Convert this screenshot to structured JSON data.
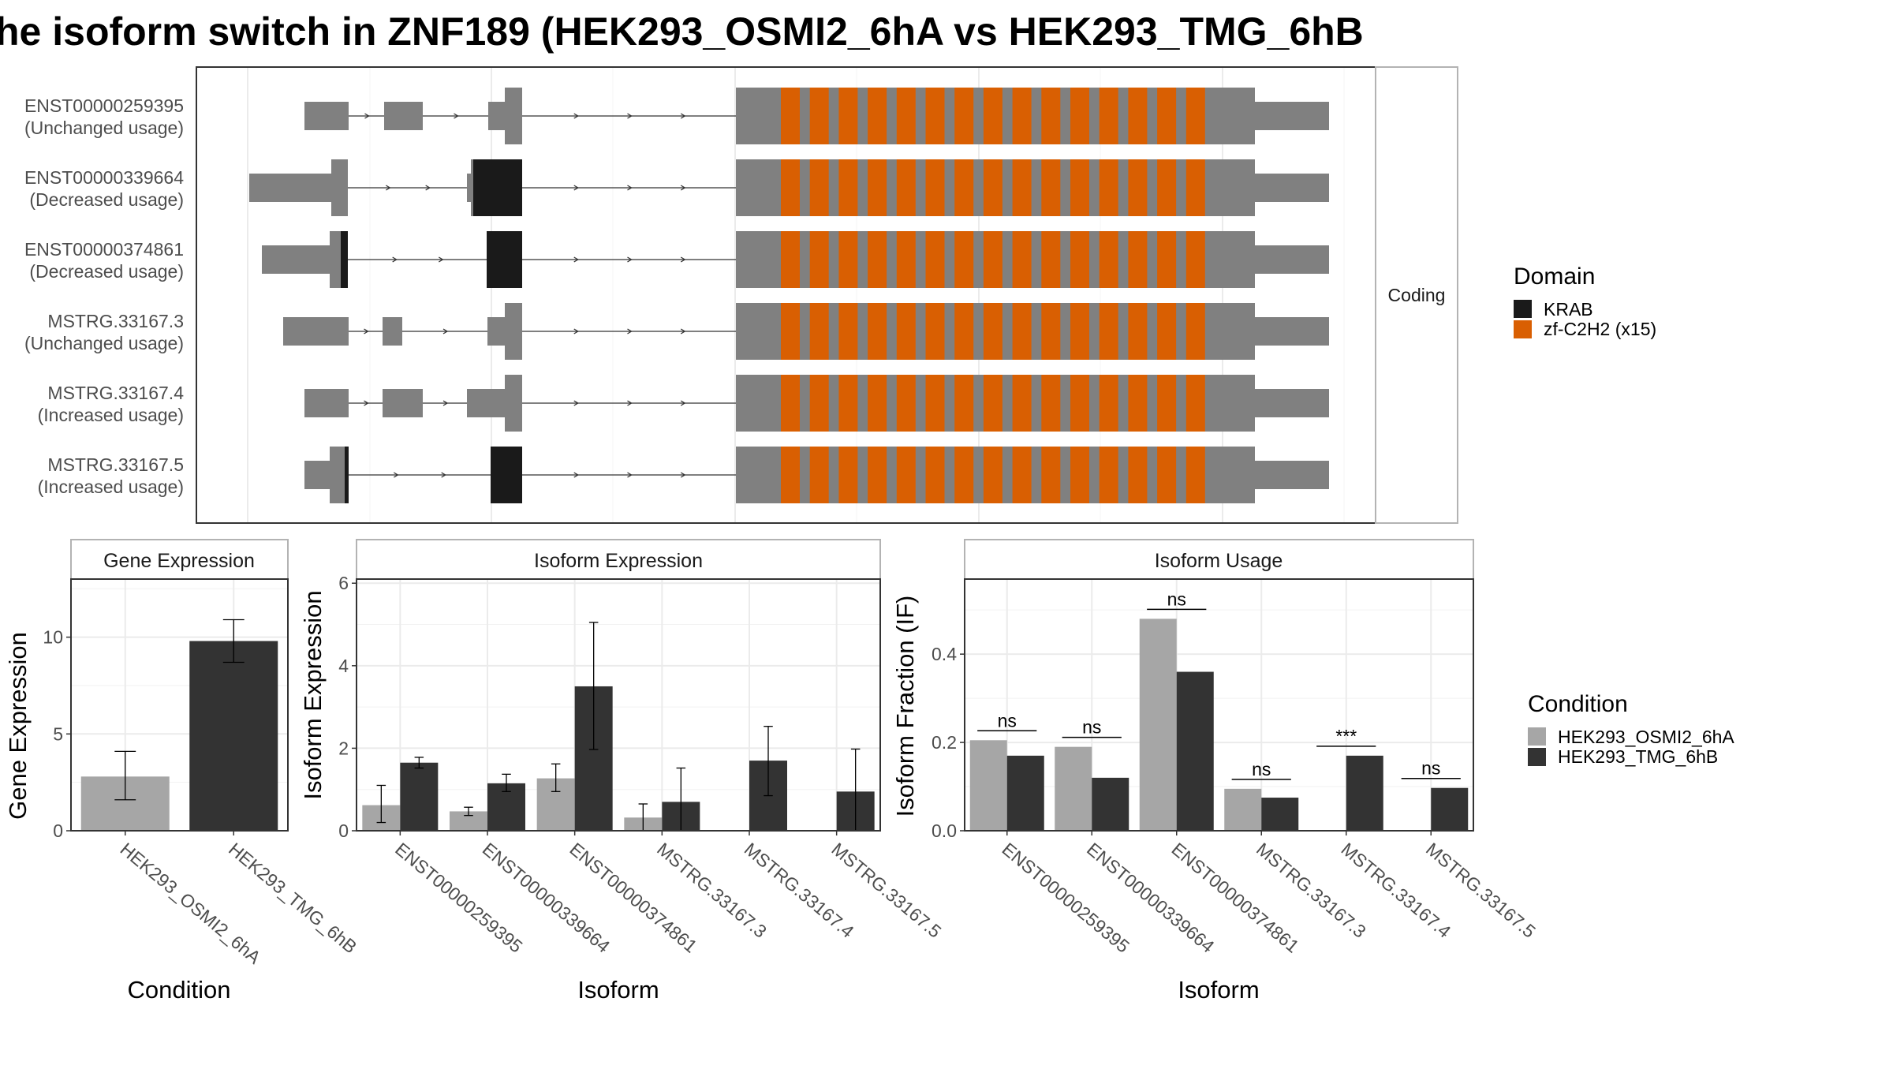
{
  "title": "he isoform switch in ZNF189 (HEK293_OSMI2_6hA vs HEK293_TMG_6hB",
  "colors": {
    "exon": "#808080",
    "krab": "#1a1a1a",
    "zf": "#d95f02",
    "cond1": "#a6a6a6",
    "cond2": "#333333",
    "grid": "#ebebeb",
    "panelBorder": "#333333",
    "stripBorder": "#b3b3b3"
  },
  "structure": {
    "facet_label": "Coding",
    "transcripts": [
      {
        "id": "ENST00000259395",
        "usage": "(Unchanged usage)"
      },
      {
        "id": "ENST00000339664",
        "usage": "(Decreased usage)"
      },
      {
        "id": "ENST00000374861",
        "usage": "(Decreased usage)"
      },
      {
        "id": "MSTRG.33167.3",
        "usage": "(Unchanged usage)"
      },
      {
        "id": "MSTRG.33167.4",
        "usage": "(Increased usage)"
      },
      {
        "id": "MSTRG.33167.5",
        "usage": "(Increased usage)"
      }
    ],
    "legend": {
      "title": "Domain",
      "items": [
        {
          "label": "KRAB",
          "color": "#1a1a1a"
        },
        {
          "label": "zf-C2H2 (x15)",
          "color": "#d95f02"
        }
      ]
    }
  },
  "chart_data": [
    {
      "type": "bar",
      "title": "Gene Expression",
      "xlabel": "Condition",
      "ylabel": "Gene Expression",
      "ylim": [
        0,
        13
      ],
      "yticks": [
        0,
        5,
        10
      ],
      "categories": [
        "HEK293_OSMI2_6hA",
        "HEK293_TMG_6hB"
      ],
      "values": [
        2.8,
        9.8
      ],
      "errors": [
        [
          1.6,
          4.1
        ],
        [
          8.7,
          10.9
        ]
      ]
    },
    {
      "type": "bar",
      "title": "Isoform Expression",
      "xlabel": "Isoform",
      "ylabel": "Isoform Expression",
      "ylim": [
        0,
        6.1
      ],
      "yticks": [
        0,
        2,
        4,
        6
      ],
      "categories": [
        "ENST00000259395",
        "ENST00000339664",
        "ENST00000374861",
        "MSTRG.33167.3",
        "MSTRG.33167.4",
        "MSTRG.33167.5"
      ],
      "series": [
        {
          "name": "HEK293_OSMI2_6hA",
          "values": [
            0.62,
            0.47,
            1.27,
            0.32,
            0.0,
            0.0
          ],
          "errors": [
            [
              0.2,
              1.1
            ],
            [
              0.37,
              0.57
            ],
            [
              0.95,
              1.62
            ],
            [
              0.0,
              0.65
            ],
            [
              0.0,
              0.0
            ],
            [
              0.0,
              0.0
            ]
          ]
        },
        {
          "name": "HEK293_TMG_6hB",
          "values": [
            1.65,
            1.15,
            3.5,
            0.7,
            1.7,
            0.95
          ],
          "errors": [
            [
              1.52,
              1.78
            ],
            [
              0.95,
              1.37
            ],
            [
              1.97,
              5.05
            ],
            [
              0.0,
              1.52
            ],
            [
              0.85,
              2.53
            ],
            [
              0.0,
              1.98
            ]
          ]
        }
      ]
    },
    {
      "type": "bar",
      "title": "Isoform Usage",
      "xlabel": "Isoform",
      "ylabel": "Isoform Fraction (IF)",
      "ylim": [
        0,
        0.57
      ],
      "yticks": [
        0.0,
        0.2,
        0.4
      ],
      "tick_labels": [
        "0.0",
        "0.2",
        "0.4"
      ],
      "categories": [
        "ENST00000259395",
        "ENST00000339664",
        "ENST00000374861",
        "MSTRG.33167.3",
        "MSTRG.33167.4",
        "MSTRG.33167.5"
      ],
      "series": [
        {
          "name": "HEK293_OSMI2_6hA",
          "values": [
            0.205,
            0.19,
            0.48,
            0.095,
            0.0,
            0.0
          ]
        },
        {
          "name": "HEK293_TMG_6hB",
          "values": [
            0.17,
            0.12,
            0.36,
            0.075,
            0.17,
            0.097
          ]
        }
      ],
      "significance": [
        "ns",
        "ns",
        "ns",
        "ns",
        "***",
        "ns"
      ]
    }
  ],
  "condition_legend": {
    "title": "Condition",
    "items": [
      {
        "label": "HEK293_OSMI2_6hA",
        "color": "#a6a6a6"
      },
      {
        "label": "HEK293_TMG_6hB",
        "color": "#333333"
      }
    ]
  }
}
